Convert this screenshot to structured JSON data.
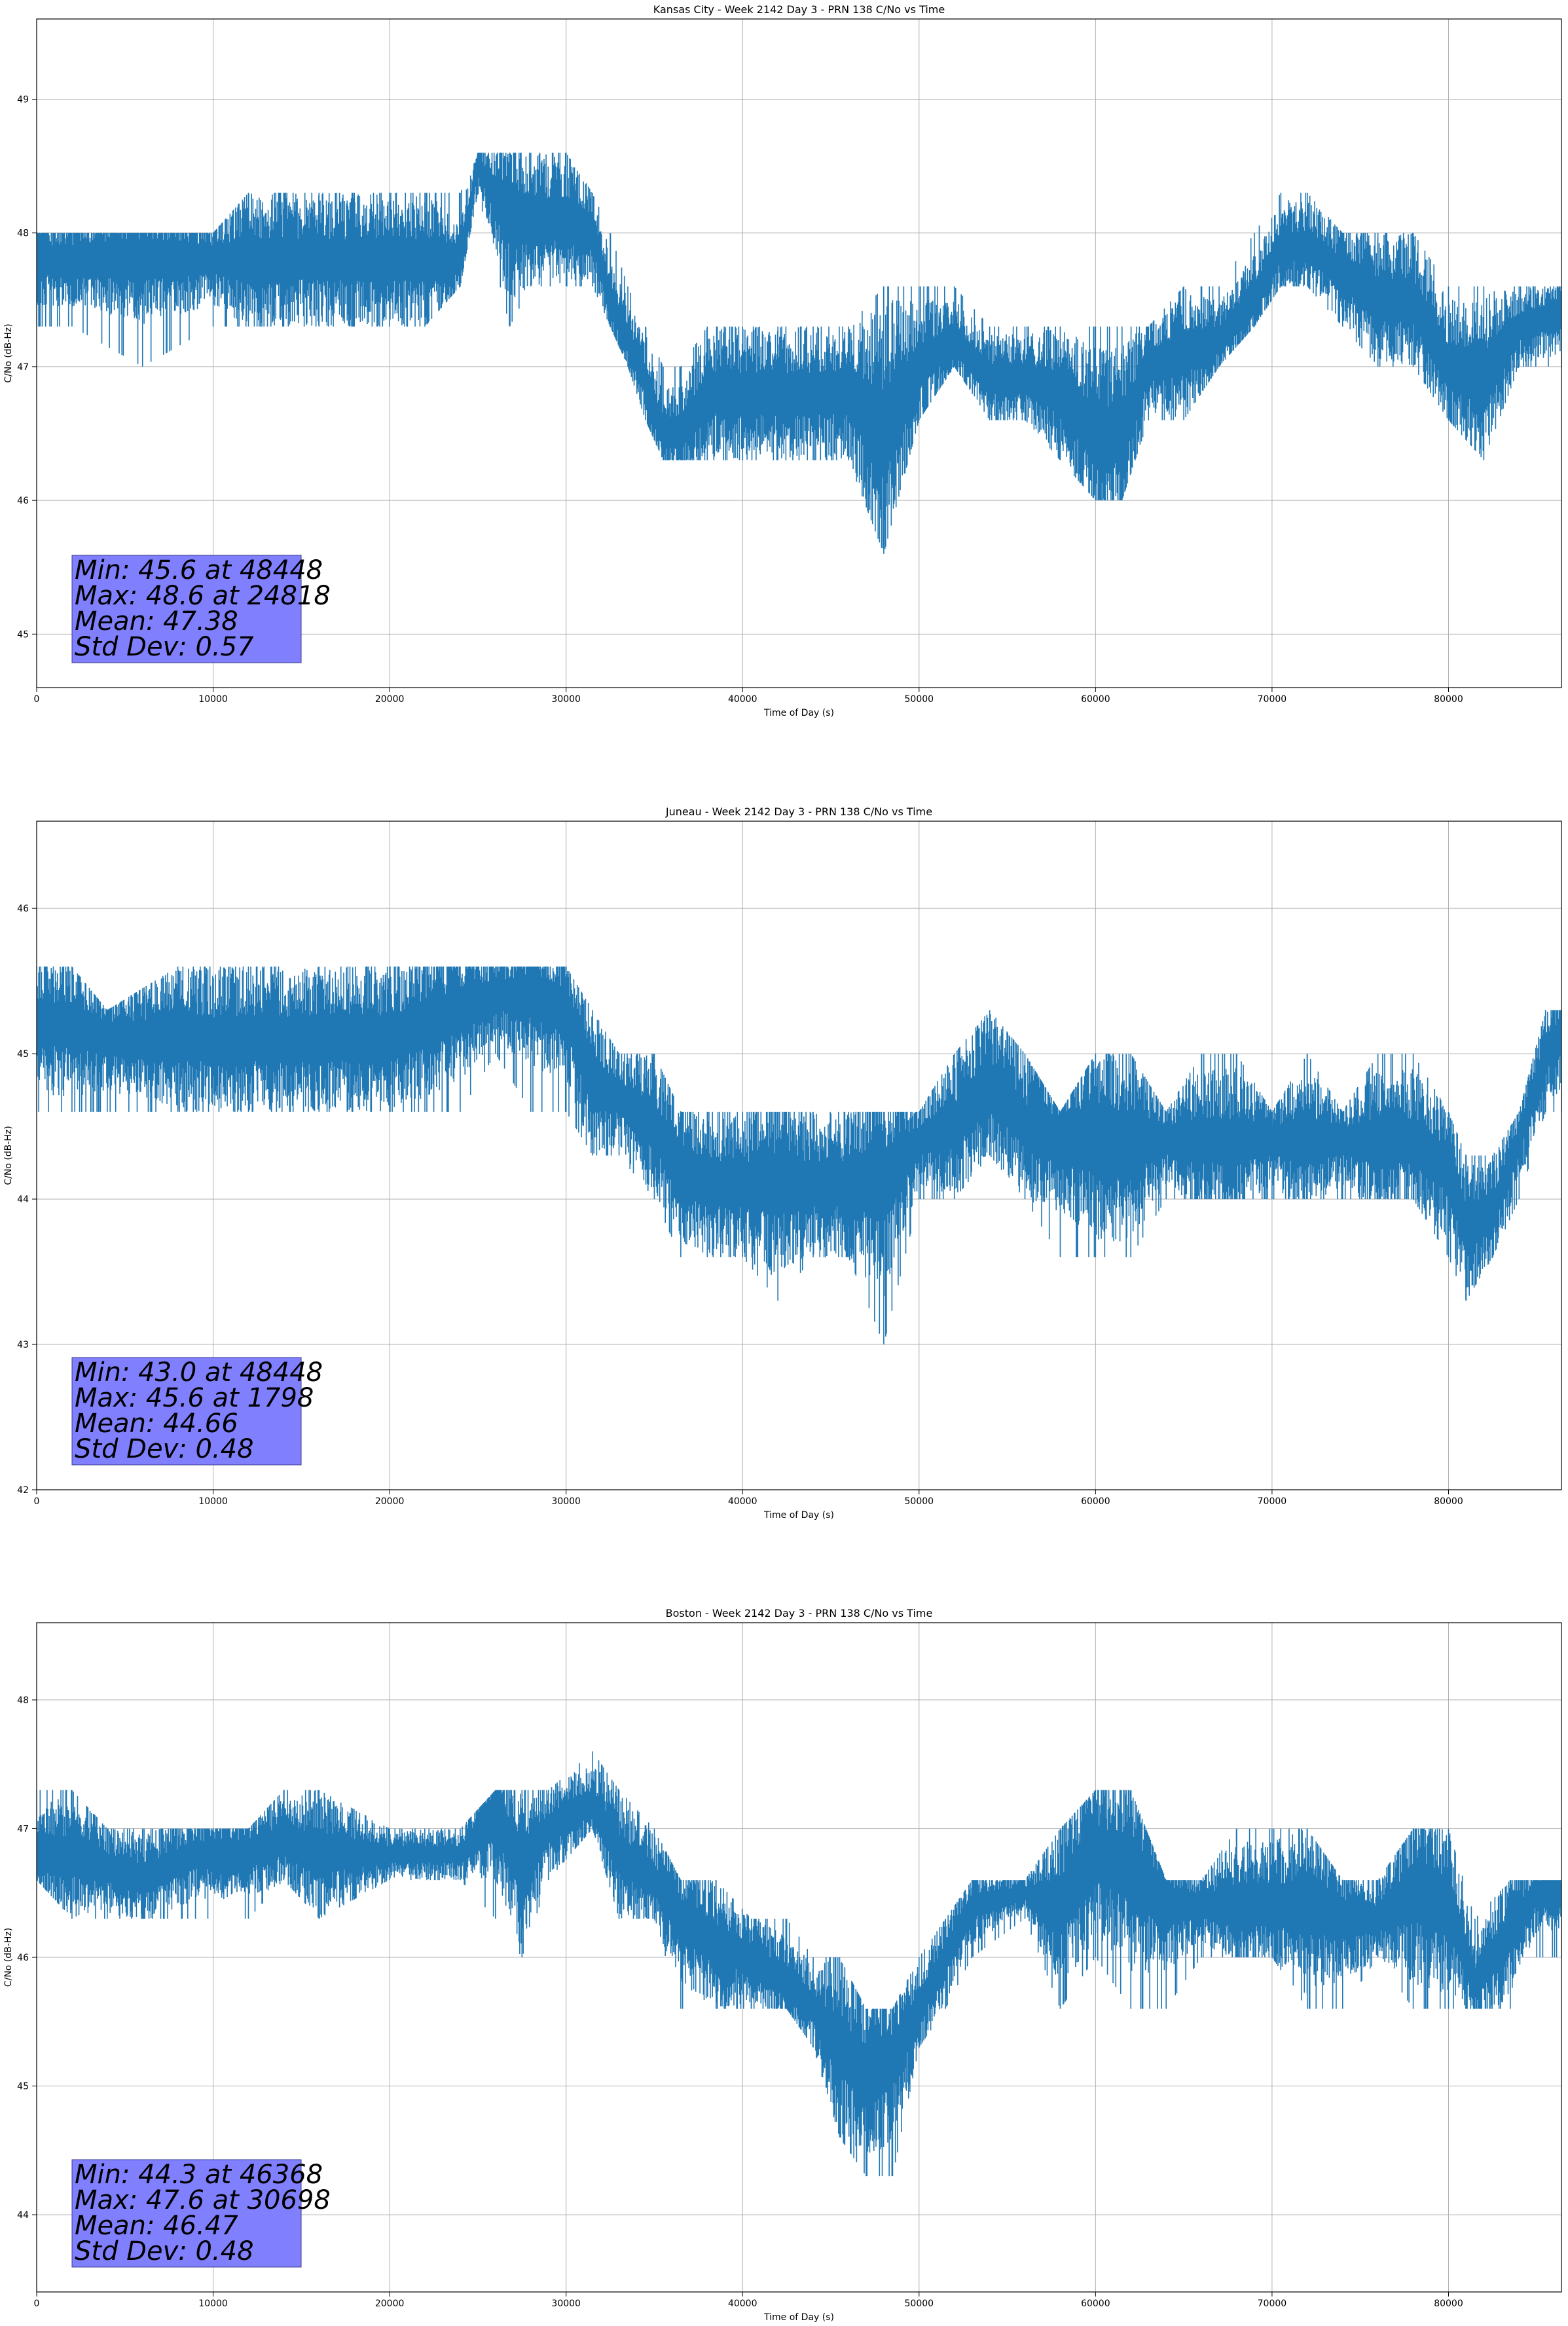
{
  "chart_data": [
    {
      "type": "line",
      "title": "Kansas City - Week 2142 Day 3 - PRN 138 C/No vs Time",
      "xlabel": "Time of Day (s)",
      "ylabel": "C/No (dB-Hz)",
      "xlim": [
        0,
        86400
      ],
      "ylim": [
        44.6,
        49.6
      ],
      "xticks": [
        0,
        10000,
        20000,
        30000,
        40000,
        50000,
        60000,
        70000,
        80000
      ],
      "yticks": [
        45,
        46,
        47,
        48,
        49
      ],
      "grid": true,
      "line_color": "#1f77b4",
      "series": [
        {
          "name": "C/No",
          "x": [
            0,
            2000,
            6000,
            10000,
            12000,
            14000,
            16000,
            18000,
            20000,
            22000,
            24000,
            25000,
            26800,
            28000,
            30000,
            31500,
            32500,
            33500,
            34500,
            35500,
            36500,
            38000,
            40000,
            42000,
            44000,
            46000,
            48000,
            50000,
            52000,
            54000,
            56000,
            58000,
            60000,
            61500,
            63000,
            65000,
            67000,
            69000,
            70500,
            72000,
            74000,
            76000,
            78000,
            80000,
            82000,
            84000,
            86400
          ],
          "low": [
            47.3,
            47.3,
            47.0,
            47.3,
            47.3,
            47.3,
            47.3,
            47.3,
            47.3,
            47.3,
            47.6,
            48.3,
            47.3,
            47.6,
            47.6,
            47.6,
            47.3,
            47.0,
            46.6,
            46.3,
            46.3,
            46.3,
            46.3,
            46.3,
            46.3,
            46.3,
            45.6,
            46.6,
            47.0,
            46.6,
            46.6,
            46.3,
            46.0,
            46.0,
            46.6,
            46.6,
            47.0,
            47.3,
            47.6,
            47.6,
            47.3,
            47.0,
            47.0,
            46.6,
            46.3,
            47.0,
            47.0
          ],
          "high": [
            48.0,
            48.0,
            48.0,
            48.0,
            48.3,
            48.3,
            48.3,
            48.3,
            48.3,
            48.3,
            48.3,
            48.6,
            48.6,
            48.6,
            48.6,
            48.3,
            48.0,
            47.6,
            47.3,
            47.0,
            47.0,
            47.3,
            47.3,
            47.3,
            47.3,
            47.3,
            47.6,
            47.6,
            47.6,
            47.3,
            47.3,
            47.3,
            47.3,
            47.3,
            47.3,
            47.6,
            47.6,
            48.0,
            48.3,
            48.3,
            48.0,
            48.0,
            48.0,
            47.6,
            47.6,
            47.6,
            47.6
          ],
          "center": [
            47.8,
            47.8,
            47.8,
            47.8,
            47.8,
            47.8,
            47.8,
            47.8,
            47.8,
            47.8,
            47.8,
            48.5,
            48.1,
            48.1,
            48.1,
            48.0,
            47.5,
            47.2,
            46.9,
            46.5,
            46.5,
            46.8,
            46.8,
            46.8,
            46.8,
            46.8,
            46.5,
            47.0,
            47.2,
            46.9,
            46.9,
            46.8,
            46.5,
            46.5,
            47.0,
            47.1,
            47.2,
            47.5,
            47.9,
            47.9,
            47.7,
            47.5,
            47.5,
            47.0,
            46.9,
            47.3,
            47.4
          ]
        }
      ],
      "stats": {
        "min": "Min: 45.6 at 48448",
        "max": "Max: 48.6 at 24818",
        "mean": "Mean: 47.38",
        "std": "Std Dev: 0.57"
      }
    },
    {
      "type": "line",
      "title": "Juneau - Week 2142 Day 3 - PRN 138 C/No vs Time",
      "xlabel": "Time of Day (s)",
      "ylabel": "C/No (dB-Hz)",
      "xlim": [
        0,
        86400
      ],
      "ylim": [
        42.0,
        46.6
      ],
      "xticks": [
        0,
        10000,
        20000,
        30000,
        40000,
        50000,
        60000,
        70000,
        80000
      ],
      "yticks": [
        42,
        43,
        44,
        45,
        46
      ],
      "grid": true,
      "line_color": "#1f77b4",
      "series": [
        {
          "name": "C/No",
          "x": [
            0,
            2000,
            4000,
            8000,
            12000,
            16000,
            20000,
            22000,
            24000,
            26000,
            28000,
            30000,
            31500,
            33000,
            35000,
            36500,
            38000,
            40000,
            42000,
            44000,
            46000,
            48000,
            50000,
            52000,
            54000,
            56000,
            58000,
            60000,
            62000,
            64000,
            66000,
            68000,
            70000,
            72000,
            74000,
            76000,
            78000,
            80000,
            81000,
            82500,
            84000,
            85500,
            86400
          ],
          "low": [
            44.6,
            44.6,
            44.6,
            44.6,
            44.6,
            44.6,
            44.6,
            44.6,
            44.6,
            45.0,
            44.6,
            44.6,
            44.3,
            44.3,
            44.0,
            43.6,
            43.6,
            43.6,
            43.3,
            43.6,
            43.6,
            43.0,
            44.0,
            44.0,
            44.3,
            44.0,
            43.6,
            43.6,
            43.6,
            44.0,
            44.0,
            44.0,
            44.0,
            44.0,
            44.0,
            44.0,
            44.0,
            43.6,
            43.3,
            43.6,
            44.0,
            44.6,
            44.6
          ],
          "high": [
            45.6,
            45.6,
            45.3,
            45.6,
            45.6,
            45.6,
            45.6,
            45.6,
            45.6,
            45.6,
            45.6,
            45.6,
            45.3,
            45.0,
            45.0,
            44.6,
            44.6,
            44.6,
            44.6,
            44.6,
            44.6,
            44.6,
            44.6,
            45.0,
            45.3,
            45.0,
            44.6,
            45.0,
            45.0,
            44.6,
            45.0,
            45.0,
            44.6,
            45.0,
            44.6,
            45.0,
            45.0,
            44.6,
            44.3,
            44.3,
            44.6,
            45.3,
            45.3
          ],
          "center": [
            45.2,
            45.2,
            45.1,
            45.1,
            45.1,
            45.1,
            45.1,
            45.2,
            45.3,
            45.4,
            45.4,
            45.3,
            44.8,
            44.7,
            44.5,
            44.2,
            44.1,
            44.1,
            44.1,
            44.1,
            44.1,
            44.1,
            44.4,
            44.5,
            44.8,
            44.5,
            44.4,
            44.4,
            44.4,
            44.4,
            44.4,
            44.4,
            44.4,
            44.4,
            44.4,
            44.4,
            44.4,
            44.2,
            43.8,
            43.9,
            44.4,
            45.0,
            45.1
          ]
        }
      ],
      "stats": {
        "min": "Min: 43.0 at 48448",
        "max": "Max: 45.6 at 1798",
        "mean": "Mean: 44.66",
        "std": "Std Dev: 0.48"
      }
    },
    {
      "type": "line",
      "title": "Boston - Week 2142 Day 3 - PRN 138 C/No vs Time",
      "xlabel": "Time of Day (s)",
      "ylabel": "C/No (dB-Hz)",
      "xlim": [
        0,
        86400
      ],
      "ylim": [
        43.4,
        48.6
      ],
      "xticks": [
        0,
        10000,
        20000,
        30000,
        40000,
        50000,
        60000,
        70000,
        80000
      ],
      "yticks": [
        44,
        45,
        46,
        47,
        48
      ],
      "grid": true,
      "line_color": "#1f77b4",
      "series": [
        {
          "name": "C/No",
          "x": [
            0,
            2000,
            4000,
            6000,
            9000,
            12000,
            14000,
            16000,
            20000,
            24000,
            26000,
            27500,
            29000,
            31500,
            33000,
            35000,
            36500,
            38500,
            40500,
            42500,
            44000,
            45500,
            47000,
            48500,
            50000,
            51500,
            53000,
            56000,
            58000,
            60000,
            62000,
            64000,
            66000,
            68000,
            70000,
            72000,
            74000,
            76000,
            78000,
            80000,
            81500,
            83500,
            85000,
            86400
          ],
          "low": [
            46.6,
            46.3,
            46.3,
            46.3,
            46.3,
            46.3,
            46.6,
            46.3,
            46.6,
            46.6,
            46.3,
            46.0,
            46.6,
            47.0,
            46.3,
            46.3,
            45.6,
            45.6,
            45.6,
            45.6,
            45.3,
            44.6,
            44.3,
            44.3,
            45.3,
            45.6,
            46.0,
            46.3,
            45.6,
            46.0,
            45.6,
            45.6,
            46.0,
            46.0,
            46.0,
            45.6,
            45.6,
            46.0,
            45.6,
            45.6,
            45.6,
            45.6,
            46.0,
            46.0
          ],
          "high": [
            47.3,
            47.3,
            47.0,
            47.0,
            47.0,
            47.0,
            47.3,
            47.3,
            47.0,
            47.0,
            47.3,
            47.3,
            47.3,
            47.6,
            47.3,
            47.0,
            46.6,
            46.6,
            46.3,
            46.3,
            46.0,
            46.0,
            45.6,
            45.6,
            46.0,
            46.3,
            46.6,
            46.6,
            47.0,
            47.3,
            47.3,
            46.6,
            46.6,
            47.0,
            47.0,
            47.0,
            46.6,
            46.6,
            47.0,
            47.0,
            46.3,
            46.6,
            46.6,
            46.6
          ],
          "center": [
            46.8,
            46.8,
            46.7,
            46.6,
            46.8,
            46.8,
            46.9,
            46.8,
            46.8,
            46.8,
            47.1,
            46.7,
            47.0,
            47.2,
            46.8,
            46.6,
            46.3,
            46.1,
            46.0,
            45.8,
            45.6,
            45.3,
            45.1,
            45.2,
            45.6,
            46.0,
            46.4,
            46.5,
            46.4,
            46.8,
            46.7,
            46.4,
            46.4,
            46.4,
            46.4,
            46.4,
            46.3,
            46.3,
            46.5,
            46.4,
            45.8,
            46.2,
            46.5,
            46.5
          ]
        }
      ],
      "stats": {
        "min": "Min: 44.3 at 46368",
        "max": "Max: 47.6 at 30698",
        "mean": "Mean: 46.47",
        "std": "Std Dev: 0.48"
      }
    }
  ]
}
